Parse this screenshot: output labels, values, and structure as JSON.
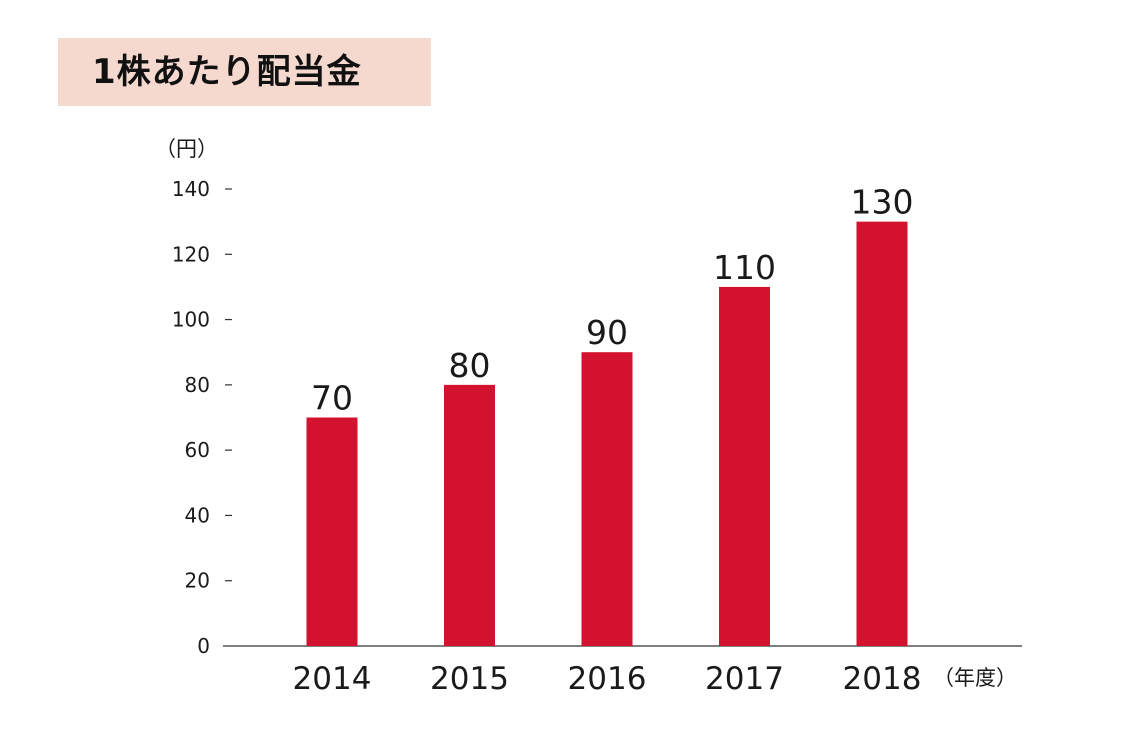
{
  "title": "1株あたり配当金",
  "colors": {
    "bar": "#d2122e",
    "title_background": "#f5d9cf",
    "axis": "#333333",
    "text": "#1a1a1a"
  },
  "chart_data": {
    "type": "bar",
    "title": "1株あたり配当金",
    "categories": [
      "2014",
      "2015",
      "2016",
      "2017",
      "2018"
    ],
    "values": [
      70,
      80,
      90,
      110,
      130
    ],
    "data_labels": [
      "70",
      "80",
      "90",
      "110",
      "130"
    ],
    "ylabel": "（円）",
    "xlabel": "（年度）",
    "ylim": [
      0,
      140
    ],
    "yticks": [
      0,
      20,
      40,
      60,
      80,
      100,
      120,
      140
    ],
    "grid": false,
    "legend": "none"
  }
}
